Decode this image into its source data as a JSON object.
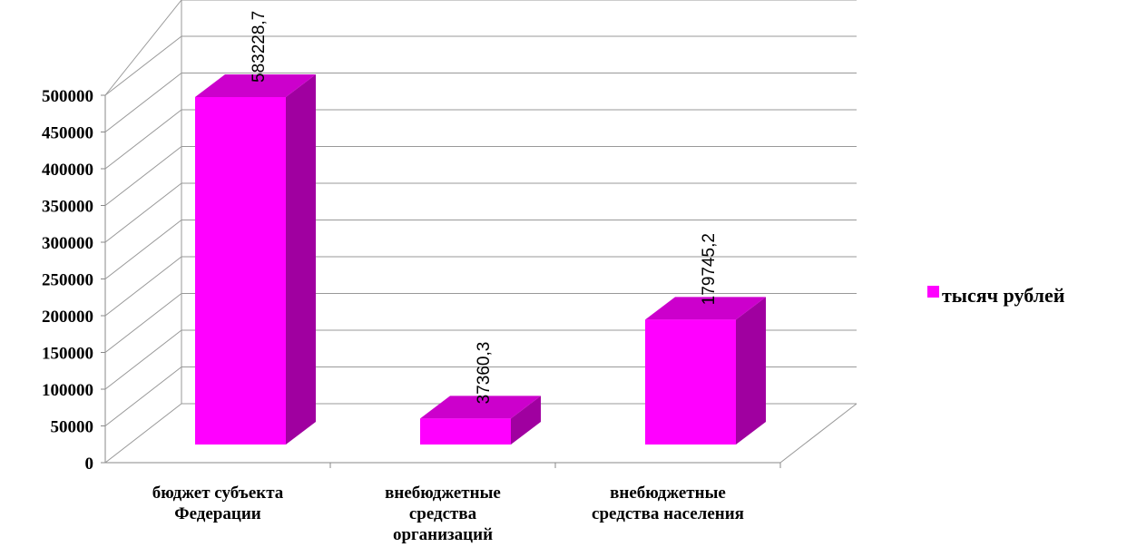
{
  "chart_data": {
    "type": "bar3d",
    "categories": [
      "бюджет субъекта Федерации",
      "внебюджетные средства организаций",
      "внебюджетные средства населения"
    ],
    "series": [
      {
        "name": "тысяч рублей",
        "color": "#ff00ff",
        "values": [
          583228.7,
          37360.3,
          179745.2
        ],
        "value_labels": [
          "583228,7",
          "37360,3",
          "179745,2"
        ]
      }
    ],
    "ylim": [
      0,
      500000
    ],
    "yticks": [
      0,
      50000,
      100000,
      150000,
      200000,
      250000,
      300000,
      350000,
      400000,
      450000,
      500000
    ],
    "grid": true,
    "legend": "right"
  }
}
